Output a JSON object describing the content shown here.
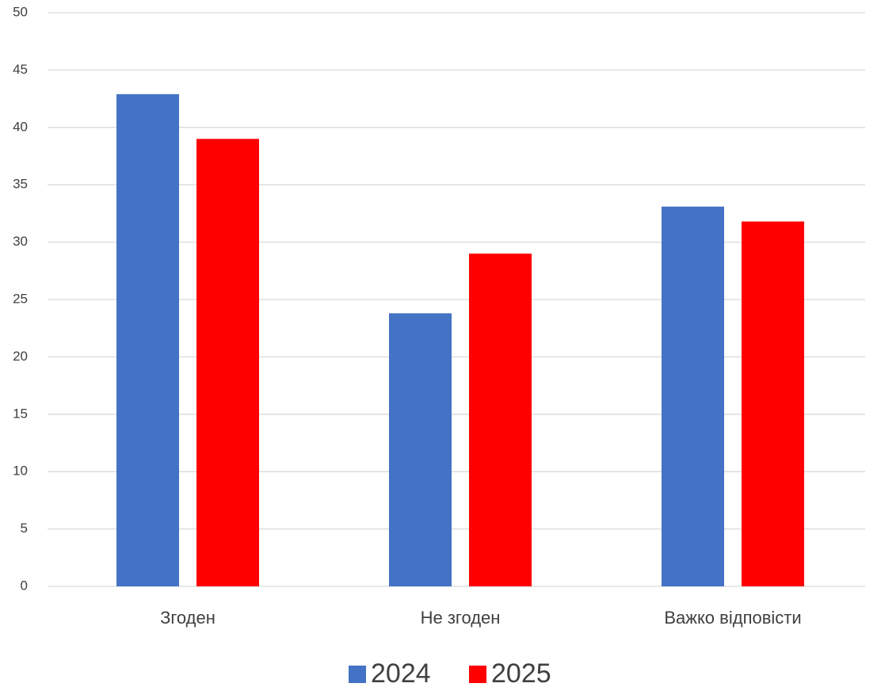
{
  "chart_data": {
    "type": "bar",
    "categories": [
      "Згоден",
      "Не згоден",
      "Важко відповісти"
    ],
    "series": [
      {
        "name": "2024",
        "color": "#4472c4",
        "values": [
          42.9,
          23.8,
          33.1
        ]
      },
      {
        "name": "2025",
        "color": "#ff0000",
        "values": [
          39.0,
          29.0,
          31.8
        ]
      }
    ],
    "ylim": [
      0,
      50
    ],
    "yticks": [
      0,
      5,
      10,
      15,
      20,
      25,
      30,
      35,
      40,
      45,
      50
    ],
    "grid": true,
    "legend": "bottom"
  }
}
